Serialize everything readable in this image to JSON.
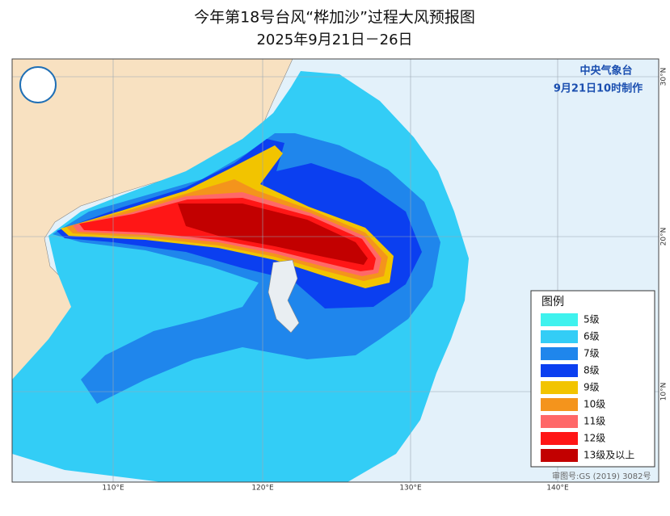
{
  "header": {
    "title": "今年第18号台风“桦加沙”过程大风预报图",
    "subtitle": "2025年9月21日－26日"
  },
  "issuer": {
    "agency": "中央气象台",
    "issued": "9月21日10时制作"
  },
  "map": {
    "lon_labels": [
      "110°E",
      "120°E",
      "130°E",
      "140°E"
    ],
    "lat_labels": [
      "30°N",
      "20°N",
      "10°N"
    ]
  },
  "legend": {
    "title": "图例",
    "items": [
      {
        "label": "5级",
        "color": "#3ff2ee"
      },
      {
        "label": "6级",
        "color": "#33cdf6"
      },
      {
        "label": "7级",
        "color": "#1f86ec"
      },
      {
        "label": "8级",
        "color": "#0b3ff0"
      },
      {
        "label": "9级",
        "color": "#f2c400"
      },
      {
        "label": "10级",
        "color": "#f4941c"
      },
      {
        "label": "11级",
        "color": "#ff6868"
      },
      {
        "label": "12级",
        "color": "#ff1616"
      },
      {
        "label": "13级及以上",
        "color": "#c20000"
      }
    ]
  },
  "footer": {
    "approval": "审图号:GS (2019) 3082号"
  }
}
